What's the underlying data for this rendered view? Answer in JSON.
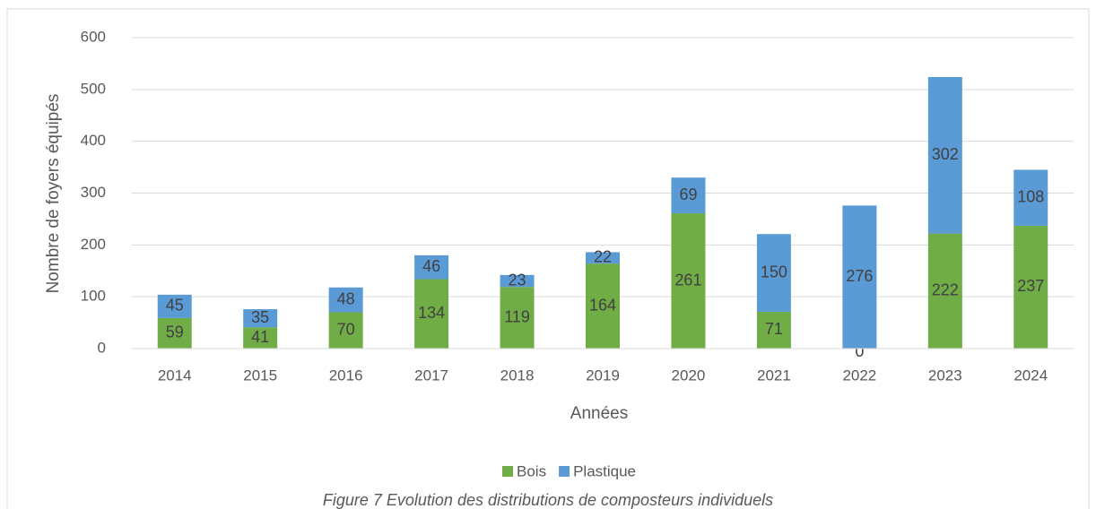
{
  "chart_data": {
    "type": "stacked_bar",
    "x_label": "Années",
    "y_label": "Nombre de foyers équipés",
    "caption": "Figure 7 Evolution des distributions de composteurs individuels",
    "categories": [
      "2014",
      "2015",
      "2016",
      "2017",
      "2018",
      "2019",
      "2020",
      "2021",
      "2022",
      "2023",
      "2024"
    ],
    "series": [
      {
        "name": "Bois",
        "color": "#70ad47",
        "values": [
          59,
          41,
          70,
          134,
          119,
          164,
          261,
          71,
          0,
          222,
          237
        ]
      },
      {
        "name": "Plastique",
        "color": "#5b9bd5",
        "values": [
          45,
          35,
          48,
          46,
          23,
          22,
          69,
          150,
          276,
          302,
          108
        ]
      }
    ],
    "ylim": [
      0,
      600
    ],
    "yticks": [
      0,
      100,
      200,
      300,
      400,
      500,
      600
    ],
    "grid": true,
    "legend": "bottom"
  }
}
